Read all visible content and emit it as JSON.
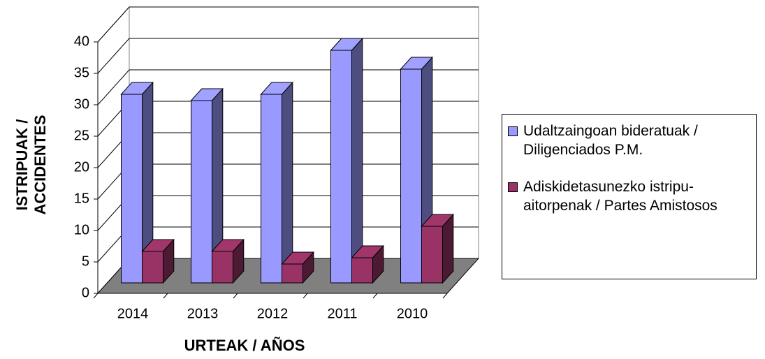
{
  "chart_data": {
    "type": "bar3d",
    "xlabel": "URTEAK / AÑOS",
    "ylabel": "ISTRIPUAK / ACCIDENTES",
    "categories": [
      "2014",
      "2013",
      "2012",
      "2011",
      "2010"
    ],
    "series": [
      {
        "name": "Udaltzaingoan bideratuak / Diligenciados P.M.",
        "color": "#9999ff",
        "values": [
          30,
          29,
          30,
          37,
          34
        ]
      },
      {
        "name": "Adiskidetasunezko istripu-aitorpenak / Partes Amistosos",
        "color": "#993366",
        "values": [
          5,
          5,
          3,
          4,
          9
        ]
      }
    ],
    "ylim": [
      0,
      40
    ],
    "yticks": [
      0,
      5,
      10,
      15,
      20,
      25,
      30,
      35,
      40
    ],
    "grid": true,
    "legend": "right"
  }
}
